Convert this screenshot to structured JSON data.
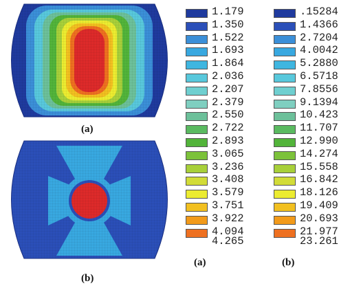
{
  "panels": [
    {
      "id": "a",
      "caption": "(a)",
      "description_type": "contour-plot"
    },
    {
      "id": "b",
      "caption": "(b)",
      "description_type": "contour-plot"
    }
  ],
  "legend_a": {
    "caption": "(a)",
    "values": [
      "1.179",
      "1.350",
      "1.522",
      "1.693",
      "1.864",
      "2.036",
      "2.207",
      "2.379",
      "2.550",
      "2.722",
      "2.893",
      "3.065",
      "3.236",
      "3.408",
      "3.579",
      "3.751",
      "3.922",
      "4.094",
      "4.265"
    ]
  },
  "legend_b": {
    "caption": "(b)",
    "values": [
      ".15284",
      "1.4366",
      "2.7204",
      "4.0042",
      "5.2880",
      "6.5718",
      "7.8556",
      "9.1394",
      "10.423",
      "11.707",
      "12.990",
      "14.274",
      "15.558",
      "16.842",
      "18.126",
      "19.409",
      "20.693",
      "21.977",
      "23.261"
    ]
  },
  "colors": [
    "#1f3a9e",
    "#2b4fb8",
    "#3b8fd8",
    "#38a8e0",
    "#3fb6e0",
    "#58c8dc",
    "#6fcfd0",
    "#7fcfc0",
    "#6cc09a",
    "#5aba60",
    "#52b43a",
    "#7cc23a",
    "#a8d03a",
    "#d2dc38",
    "#ecec30",
    "#f2c020",
    "#f29a1a",
    "#ee7020",
    "#dd2a2a"
  ]
}
